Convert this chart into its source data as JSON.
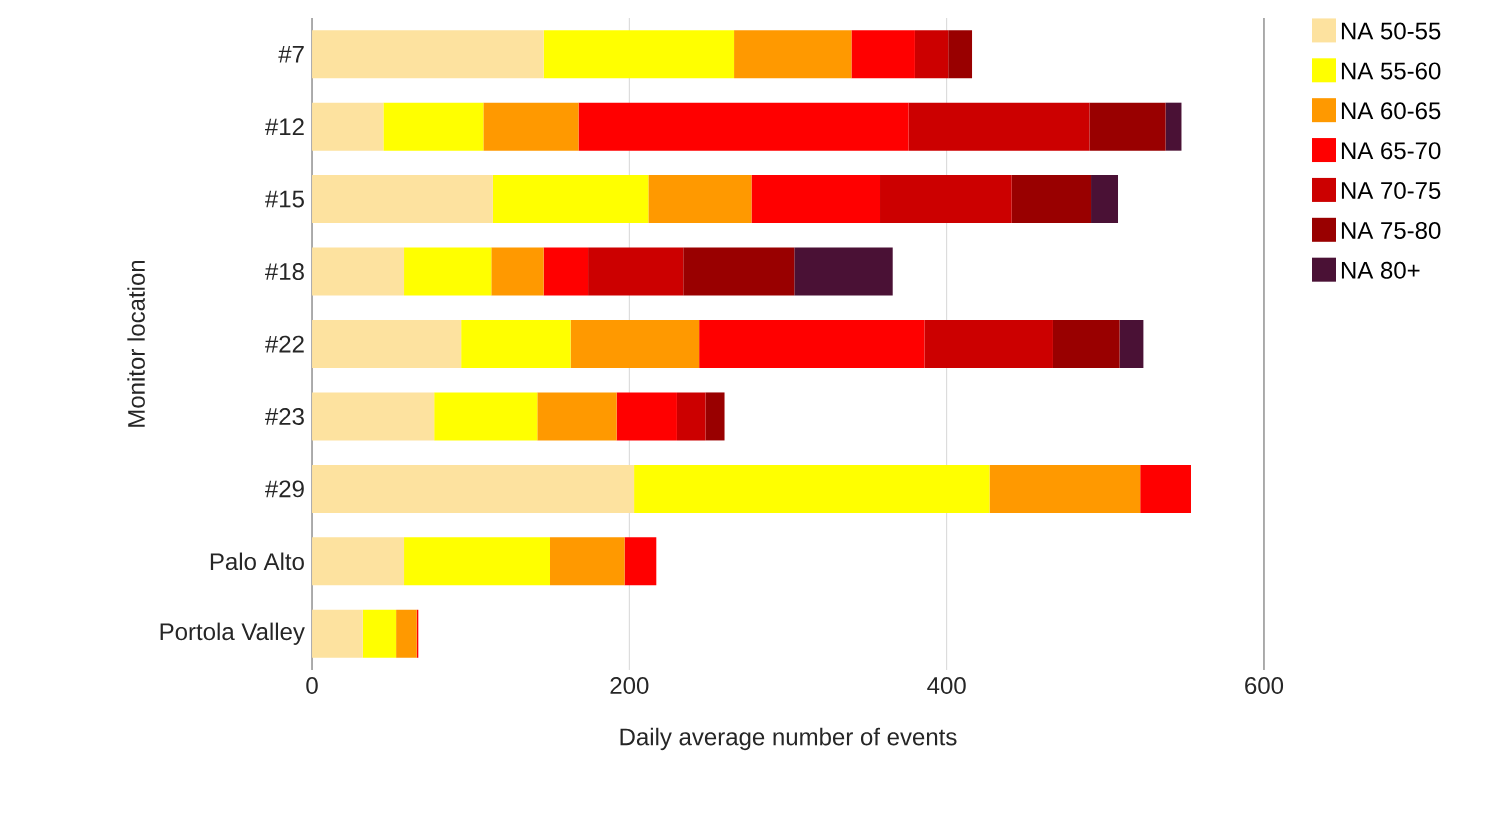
{
  "chart_data": {
    "type": "bar",
    "orientation": "horizontal",
    "stacked": true,
    "xlabel": "Daily average number of events",
    "ylabel": "Monitor location",
    "categories": [
      "#7",
      "#12",
      "#15",
      "#18",
      "#22",
      "#23",
      "#29",
      "Palo Alto",
      "Portola Valley"
    ],
    "series": [
      {
        "name": "NA 50-55",
        "color": "#fde29f",
        "values": [
          146,
          45,
          114,
          58,
          94,
          77,
          203,
          58,
          32
        ]
      },
      {
        "name": "NA 55-60",
        "color": "#ffff00",
        "values": [
          120,
          63,
          98,
          55,
          69,
          65,
          224,
          92,
          21
        ]
      },
      {
        "name": "NA 60-65",
        "color": "#ff9900",
        "values": [
          74,
          60,
          65,
          33,
          81,
          50,
          95,
          47,
          13
        ]
      },
      {
        "name": "NA 65-70",
        "color": "#ff0000",
        "values": [
          40,
          208,
          81,
          28,
          142,
          38,
          32,
          20,
          1
        ]
      },
      {
        "name": "NA 70-75",
        "color": "#cc0000",
        "values": [
          21,
          114,
          83,
          60,
          81,
          18,
          0,
          0,
          0
        ]
      },
      {
        "name": "NA 75-80",
        "color": "#990000",
        "values": [
          15,
          48,
          50,
          70,
          42,
          12,
          0,
          0,
          0
        ]
      },
      {
        "name": "NA 80+",
        "color": "#4a1135",
        "values": [
          0,
          10,
          17,
          62,
          15,
          0,
          0,
          0,
          0
        ]
      }
    ],
    "xlim": [
      0,
      600
    ],
    "xticks": [
      0,
      200,
      400,
      600
    ],
    "grid": "x",
    "legend": "right"
  }
}
